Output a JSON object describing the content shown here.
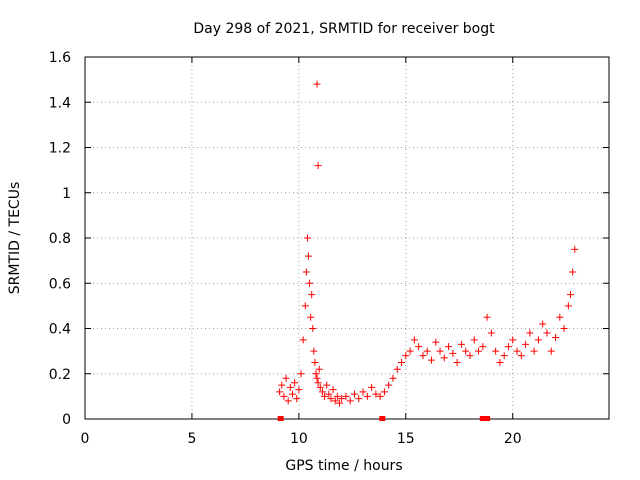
{
  "chart_data": {
    "type": "scatter",
    "title": "Day 298 of 2021, SRMTID for receiver bogt",
    "xlabel": "GPS time / hours",
    "ylabel": "SRMTID / TECUs",
    "xlim": [
      0,
      24.5
    ],
    "ylim": [
      0,
      1.6
    ],
    "xticks": [
      0,
      5,
      10,
      15,
      20
    ],
    "xtick_labels": [
      "0",
      "5",
      "10",
      "15",
      "20"
    ],
    "yticks": [
      0,
      0.2,
      0.4,
      0.6,
      0.8,
      1,
      1.2,
      1.4,
      1.6
    ],
    "ytick_labels": [
      "0",
      "0.2",
      "0.4",
      "0.6",
      "0.8",
      "1",
      "1.2",
      "1.4",
      "1.6"
    ],
    "grid": true,
    "marker": "+",
    "color": "#ff0000",
    "series": [
      {
        "name": "SRMTID",
        "x": [
          9.1,
          9.2,
          9.3,
          9.4,
          9.5,
          9.6,
          9.7,
          9.8,
          9.9,
          10.0,
          10.1,
          10.2,
          10.3,
          10.35,
          10.4,
          10.45,
          10.5,
          10.55,
          10.6,
          10.65,
          10.7,
          10.75,
          10.8,
          10.85,
          10.9,
          10.95,
          11.0,
          11.1,
          11.2,
          11.3,
          11.4,
          11.5,
          11.6,
          11.7,
          11.8,
          11.9,
          12.0,
          12.2,
          12.4,
          12.6,
          12.8,
          13.0,
          13.2,
          13.4,
          13.6,
          13.8,
          14.0,
          14.2,
          14.4,
          14.6,
          14.8,
          15.0,
          15.2,
          15.4,
          15.6,
          15.8,
          16.0,
          16.2,
          16.4,
          16.6,
          16.8,
          17.0,
          17.2,
          17.4,
          17.6,
          17.8,
          18.0,
          18.2,
          18.4,
          18.6,
          18.8,
          19.0,
          19.2,
          19.4,
          19.6,
          19.8,
          20.0,
          20.2,
          20.4,
          20.6,
          20.8,
          21.0,
          21.2,
          21.4,
          21.6,
          21.8,
          22.0,
          22.2,
          22.4,
          22.6,
          22.7,
          22.8,
          22.9,
          10.85,
          10.9
        ],
        "y": [
          0.12,
          0.15,
          0.1,
          0.18,
          0.08,
          0.14,
          0.11,
          0.16,
          0.09,
          0.13,
          0.2,
          0.35,
          0.5,
          0.65,
          0.8,
          0.72,
          0.6,
          0.45,
          0.55,
          0.4,
          0.3,
          0.25,
          0.2,
          0.18,
          0.16,
          0.22,
          0.14,
          0.12,
          0.1,
          0.15,
          0.11,
          0.09,
          0.13,
          0.08,
          0.1,
          0.07,
          0.09,
          0.1,
          0.08,
          0.11,
          0.09,
          0.12,
          0.1,
          0.14,
          0.11,
          0.1,
          0.12,
          0.15,
          0.18,
          0.22,
          0.25,
          0.28,
          0.3,
          0.35,
          0.32,
          0.28,
          0.3,
          0.26,
          0.34,
          0.3,
          0.27,
          0.32,
          0.29,
          0.25,
          0.33,
          0.3,
          0.28,
          0.35,
          0.3,
          0.32,
          0.45,
          0.38,
          0.3,
          0.25,
          0.28,
          0.32,
          0.35,
          0.3,
          0.28,
          0.33,
          0.38,
          0.3,
          0.35,
          0.42,
          0.38,
          0.3,
          0.36,
          0.45,
          0.4,
          0.5,
          0.55,
          0.65,
          0.75,
          1.48,
          1.12
        ]
      }
    ],
    "gap_markers_x": [
      9.15,
      13.9,
      18.6,
      18.7,
      18.8
    ]
  }
}
